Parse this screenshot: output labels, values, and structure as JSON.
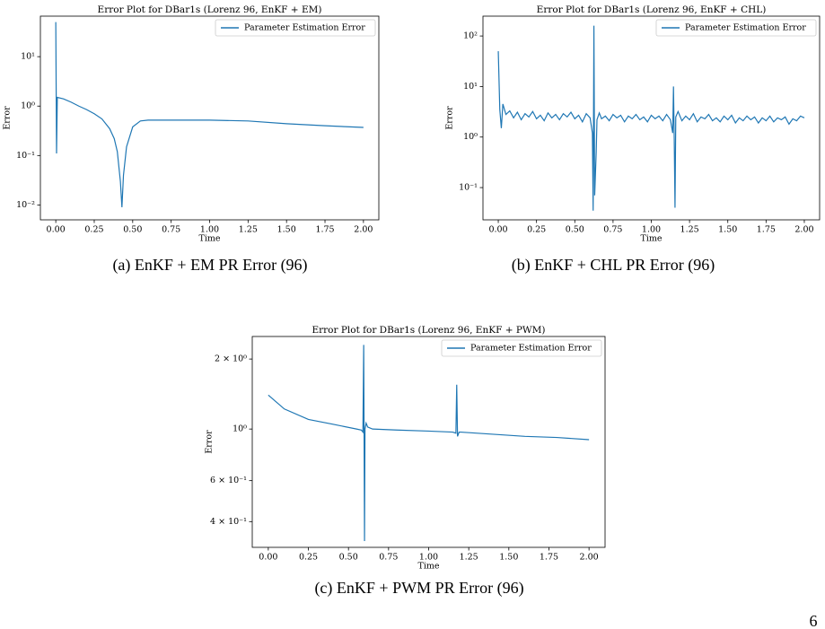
{
  "chart_data": [
    {
      "type": "line",
      "title": "Error Plot for DBar1s (Lorenz 96, EnKF + EM)",
      "xlabel": "Time",
      "ylabel": "Error",
      "caption": "(a) EnKF + EM PR Error (96)",
      "log_y": true,
      "legend": "upper right",
      "x": [
        0,
        0.005,
        0.01,
        0.05,
        0.1,
        0.15,
        0.2,
        0.25,
        0.3,
        0.35,
        0.38,
        0.4,
        0.42,
        0.43,
        0.44,
        0.46,
        0.5,
        0.55,
        0.6,
        0.75,
        1.0,
        1.25,
        1.5,
        1.75,
        2.0
      ],
      "series": [
        {
          "name": "Parameter Estimation Error",
          "color": "#1f77b4",
          "values": [
            50,
            0.11,
            1.5,
            1.4,
            1.2,
            1.0,
            0.85,
            0.7,
            0.55,
            0.35,
            0.22,
            0.12,
            0.03,
            0.009,
            0.04,
            0.15,
            0.38,
            0.5,
            0.52,
            0.52,
            0.52,
            0.5,
            0.44,
            0.4,
            0.37
          ]
        }
      ],
      "xlim": [
        -0.1,
        2.1
      ],
      "ylim": [
        0.005,
        66
      ],
      "xticks": [
        {
          "value": 0,
          "label": "0.00"
        },
        {
          "value": 0.25,
          "label": "0.25"
        },
        {
          "value": 0.5,
          "label": "0.50"
        },
        {
          "value": 0.75,
          "label": "0.75"
        },
        {
          "value": 1,
          "label": "1.00"
        },
        {
          "value": 1.25,
          "label": "1.25"
        },
        {
          "value": 1.5,
          "label": "1.50"
        },
        {
          "value": 1.75,
          "label": "1.75"
        },
        {
          "value": 2,
          "label": "2.00"
        }
      ],
      "yticks": [
        {
          "value": 0.01,
          "label": "10⁻²"
        },
        {
          "value": 0.1,
          "label": "10⁻¹"
        },
        {
          "value": 1,
          "label": "10⁰"
        },
        {
          "value": 10,
          "label": "10¹"
        }
      ]
    },
    {
      "type": "line",
      "title": "Error Plot for DBar1s (Lorenz 96, EnKF + CHL)",
      "xlabel": "Time",
      "ylabel": "Error",
      "caption": "(b) EnKF + CHL PR Error (96)",
      "log_y": true,
      "legend": "upper right",
      "x": [
        0,
        0.01,
        0.02,
        0.03,
        0.05,
        0.075,
        0.1,
        0.125,
        0.15,
        0.175,
        0.2,
        0.225,
        0.25,
        0.275,
        0.3,
        0.325,
        0.35,
        0.375,
        0.4,
        0.425,
        0.45,
        0.475,
        0.5,
        0.525,
        0.55,
        0.575,
        0.6,
        0.615,
        0.62,
        0.625,
        0.63,
        0.64,
        0.645,
        0.66,
        0.675,
        0.7,
        0.725,
        0.75,
        0.775,
        0.8,
        0.825,
        0.85,
        0.875,
        0.9,
        0.925,
        0.95,
        0.975,
        1.0,
        1.025,
        1.05,
        1.075,
        1.1,
        1.125,
        1.14,
        1.145,
        1.15,
        1.155,
        1.16,
        1.175,
        1.2,
        1.225,
        1.25,
        1.275,
        1.3,
        1.325,
        1.35,
        1.375,
        1.4,
        1.425,
        1.45,
        1.475,
        1.5,
        1.525,
        1.55,
        1.575,
        1.6,
        1.625,
        1.65,
        1.675,
        1.7,
        1.725,
        1.75,
        1.775,
        1.8,
        1.825,
        1.85,
        1.875,
        1.9,
        1.925,
        1.95,
        1.975,
        2.0
      ],
      "series": [
        {
          "name": "Parameter Estimation Error",
          "color": "#1f77b4",
          "values": [
            50,
            3.5,
            1.5,
            4.5,
            2.8,
            3.3,
            2.4,
            3.1,
            2.2,
            2.9,
            2.5,
            3.2,
            2.3,
            2.7,
            2.1,
            3.0,
            2.4,
            2.8,
            2.2,
            2.9,
            2.5,
            3.1,
            2.3,
            2.7,
            2.0,
            2.9,
            2.4,
            1.2,
            0.035,
            160,
            0.07,
            0.5,
            2.2,
            3.0,
            2.3,
            2.6,
            2.1,
            2.8,
            2.4,
            2.7,
            2.0,
            2.6,
            2.3,
            2.8,
            2.2,
            2.5,
            2.0,
            2.7,
            2.3,
            2.6,
            2.1,
            2.8,
            2.2,
            1.2,
            10,
            0.9,
            0.04,
            2.5,
            3.2,
            2.1,
            2.6,
            2.2,
            2.9,
            2.0,
            2.5,
            2.3,
            2.8,
            2.1,
            2.4,
            2.0,
            2.6,
            2.2,
            2.7,
            1.9,
            2.4,
            2.1,
            2.6,
            2.2,
            2.5,
            1.9,
            2.4,
            2.1,
            2.6,
            2.0,
            2.4,
            2.2,
            2.5,
            1.8,
            2.3,
            2.1,
            2.6,
            2.4
          ]
        }
      ],
      "xlim": [
        -0.1,
        2.1
      ],
      "ylim": [
        0.023,
        247
      ],
      "xticks": [
        {
          "value": 0,
          "label": "0.00"
        },
        {
          "value": 0.25,
          "label": "0.25"
        },
        {
          "value": 0.5,
          "label": "0.50"
        },
        {
          "value": 0.75,
          "label": "0.75"
        },
        {
          "value": 1,
          "label": "1.00"
        },
        {
          "value": 1.25,
          "label": "1.25"
        },
        {
          "value": 1.5,
          "label": "1.50"
        },
        {
          "value": 1.75,
          "label": "1.75"
        },
        {
          "value": 2,
          "label": "2.00"
        }
      ],
      "yticks": [
        {
          "value": 0.1,
          "label": "10⁻¹"
        },
        {
          "value": 1,
          "label": "10⁰"
        },
        {
          "value": 10,
          "label": "10¹"
        },
        {
          "value": 100,
          "label": "10²"
        }
      ]
    },
    {
      "type": "line",
      "title": "Error Plot for DBar1s (Lorenz 96, EnKF + PWM)",
      "xlabel": "Time",
      "ylabel": "Error",
      "caption": "(c) EnKF + PWM PR Error (96)",
      "log_y": true,
      "legend": "upper right",
      "x": [
        0,
        0.1,
        0.25,
        0.4,
        0.55,
        0.58,
        0.59,
        0.595,
        0.6,
        0.603,
        0.61,
        0.62,
        0.65,
        0.8,
        1.0,
        1.15,
        1.17,
        1.175,
        1.18,
        1.19,
        1.2,
        1.4,
        1.6,
        1.8,
        2.0
      ],
      "series": [
        {
          "name": "Parameter Estimation Error",
          "color": "#1f77b4",
          "values": [
            1.4,
            1.22,
            1.1,
            1.05,
            1.0,
            0.99,
            0.97,
            2.3,
            0.33,
            1.0,
            1.06,
            1.02,
            1.0,
            0.99,
            0.98,
            0.97,
            0.96,
            1.55,
            0.93,
            0.97,
            0.97,
            0.95,
            0.93,
            0.92,
            0.9
          ]
        }
      ],
      "xlim": [
        -0.1,
        2.1
      ],
      "ylim": [
        0.31,
        2.5
      ],
      "xticks": [
        {
          "value": 0,
          "label": "0.00"
        },
        {
          "value": 0.25,
          "label": "0.25"
        },
        {
          "value": 0.5,
          "label": "0.50"
        },
        {
          "value": 0.75,
          "label": "0.75"
        },
        {
          "value": 1,
          "label": "1.00"
        },
        {
          "value": 1.25,
          "label": "1.25"
        },
        {
          "value": 1.5,
          "label": "1.50"
        },
        {
          "value": 1.75,
          "label": "1.75"
        },
        {
          "value": 2,
          "label": "2.00"
        }
      ],
      "yticks": [
        {
          "value": 0.4,
          "label": "4 × 10⁻¹"
        },
        {
          "value": 0.6,
          "label": "6 × 10⁻¹"
        },
        {
          "value": 1,
          "label": "10⁰"
        },
        {
          "value": 2,
          "label": "2 × 10⁰"
        }
      ]
    }
  ],
  "page_number": "6"
}
